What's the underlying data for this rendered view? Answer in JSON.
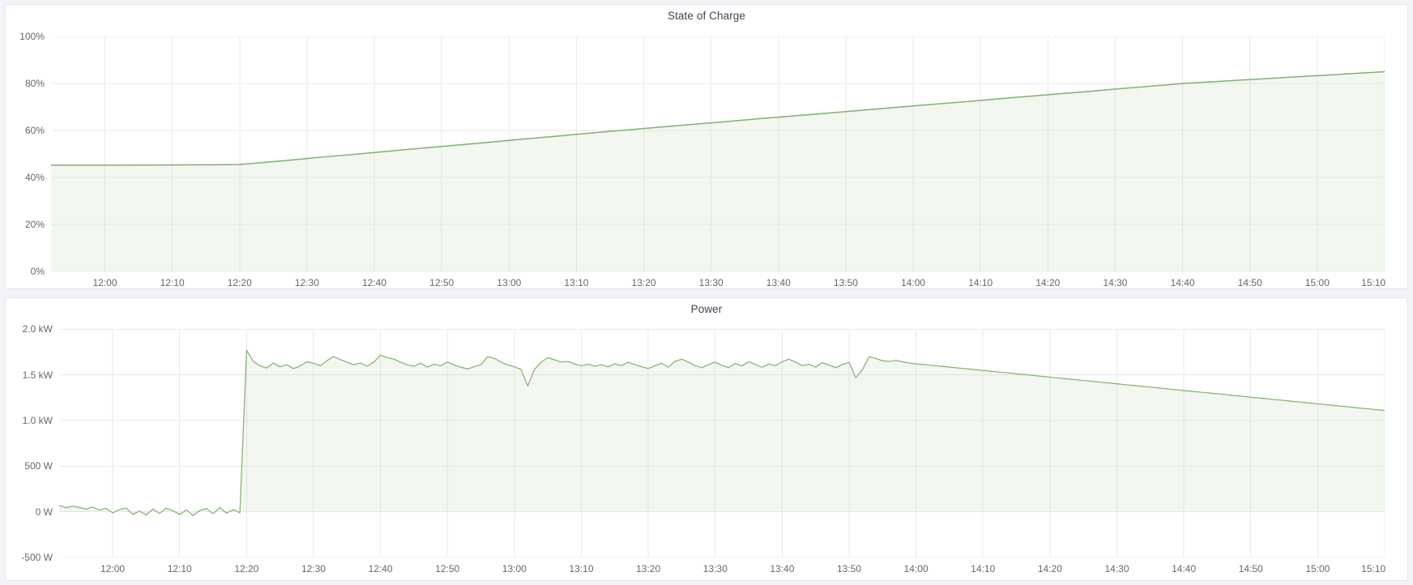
{
  "page": {
    "background": "#f2f4f7",
    "panel_background": "#ffffff",
    "panel_border": "#e2e5e9",
    "grid_color": "#e9eaec",
    "tick_text_color": "#63676f",
    "title_color": "#3f4450"
  },
  "chart_data": [
    {
      "type": "area",
      "title": "State of Charge",
      "ylabel": "",
      "xlabel": "",
      "legend": "none",
      "grid": true,
      "line_color": "#7eb26d",
      "fill_color": "rgba(126,178,109,0.1)",
      "y_range": [
        0,
        100
      ],
      "fill_baseline": 0,
      "x_range_minutes": [
        0,
        198
      ],
      "x_ticks": [
        {
          "t": 8,
          "label": "12:00"
        },
        {
          "t": 18,
          "label": "12:10"
        },
        {
          "t": 28,
          "label": "12:20"
        },
        {
          "t": 38,
          "label": "12:30"
        },
        {
          "t": 48,
          "label": "12:40"
        },
        {
          "t": 58,
          "label": "12:50"
        },
        {
          "t": 68,
          "label": "13:00"
        },
        {
          "t": 78,
          "label": "13:10"
        },
        {
          "t": 88,
          "label": "13:20"
        },
        {
          "t": 98,
          "label": "13:30"
        },
        {
          "t": 108,
          "label": "13:40"
        },
        {
          "t": 118,
          "label": "13:50"
        },
        {
          "t": 128,
          "label": "14:00"
        },
        {
          "t": 138,
          "label": "14:10"
        },
        {
          "t": 148,
          "label": "14:20"
        },
        {
          "t": 158,
          "label": "14:30"
        },
        {
          "t": 168,
          "label": "14:40"
        },
        {
          "t": 178,
          "label": "14:50"
        },
        {
          "t": 188,
          "label": "15:00"
        },
        {
          "t": 198,
          "label": "15:10"
        }
      ],
      "y_ticks": [
        {
          "v": 0,
          "label": "0%"
        },
        {
          "v": 20,
          "label": "20%"
        },
        {
          "v": 40,
          "label": "40%"
        },
        {
          "v": 60,
          "label": "60%"
        },
        {
          "v": 80,
          "label": "80%"
        },
        {
          "v": 100,
          "label": "100%"
        }
      ],
      "points": [
        [
          0,
          45.2
        ],
        [
          8,
          45.2
        ],
        [
          16,
          45.3
        ],
        [
          24,
          45.4
        ],
        [
          28,
          45.5
        ],
        [
          34,
          47.0
        ],
        [
          40,
          48.6
        ],
        [
          46,
          50.1
        ],
        [
          52,
          51.7
        ],
        [
          58,
          53.2
        ],
        [
          64,
          54.7
        ],
        [
          70,
          56.3
        ],
        [
          76,
          57.8
        ],
        [
          82,
          59.4
        ],
        [
          88,
          60.8
        ],
        [
          94,
          62.3
        ],
        [
          100,
          63.7
        ],
        [
          106,
          65.2
        ],
        [
          112,
          66.6
        ],
        [
          118,
          68.0
        ],
        [
          124,
          69.5
        ],
        [
          130,
          70.9
        ],
        [
          136,
          72.3
        ],
        [
          142,
          73.8
        ],
        [
          148,
          75.2
        ],
        [
          154,
          76.6
        ],
        [
          160,
          78.1
        ],
        [
          166,
          79.5
        ],
        [
          168,
          80.0
        ],
        [
          174,
          81.0
        ],
        [
          180,
          82.0
        ],
        [
          186,
          83.0
        ],
        [
          192,
          84.0
        ],
        [
          198,
          85.0
        ]
      ]
    },
    {
      "type": "area",
      "title": "Power",
      "ylabel": "",
      "xlabel": "",
      "legend": "none",
      "grid": true,
      "line_color": "#7eb26d",
      "fill_color": "rgba(126,178,109,0.1)",
      "y_range": [
        -500,
        2110
      ],
      "fill_baseline": 0,
      "x_range_minutes": [
        0,
        198
      ],
      "x_ticks": [
        {
          "t": 8,
          "label": "12:00"
        },
        {
          "t": 18,
          "label": "12:10"
        },
        {
          "t": 28,
          "label": "12:20"
        },
        {
          "t": 38,
          "label": "12:30"
        },
        {
          "t": 48,
          "label": "12:40"
        },
        {
          "t": 58,
          "label": "12:50"
        },
        {
          "t": 68,
          "label": "13:00"
        },
        {
          "t": 78,
          "label": "13:10"
        },
        {
          "t": 88,
          "label": "13:20"
        },
        {
          "t": 98,
          "label": "13:30"
        },
        {
          "t": 108,
          "label": "13:40"
        },
        {
          "t": 118,
          "label": "13:50"
        },
        {
          "t": 128,
          "label": "14:00"
        },
        {
          "t": 138,
          "label": "14:10"
        },
        {
          "t": 148,
          "label": "14:20"
        },
        {
          "t": 158,
          "label": "14:30"
        },
        {
          "t": 168,
          "label": "14:40"
        },
        {
          "t": 178,
          "label": "14:50"
        },
        {
          "t": 188,
          "label": "15:00"
        },
        {
          "t": 198,
          "label": "15:10"
        }
      ],
      "y_ticks": [
        {
          "v": -500,
          "label": "-500 W"
        },
        {
          "v": 0,
          "label": "0 W"
        },
        {
          "v": 500,
          "label": "500 W"
        },
        {
          "v": 1000,
          "label": "1.0 kW"
        },
        {
          "v": 1500,
          "label": "1.5 kW"
        },
        {
          "v": 2000,
          "label": "2.0 kW"
        }
      ],
      "values_unit": "W",
      "values_step_minutes": 1,
      "values": [
        70,
        45,
        62,
        48,
        30,
        52,
        20,
        38,
        -12,
        25,
        42,
        -28,
        8,
        -35,
        30,
        -18,
        40,
        12,
        -30,
        22,
        -42,
        15,
        35,
        -20,
        48,
        -15,
        25,
        -10,
        1770,
        1648,
        1600,
        1576,
        1630,
        1589,
        1612,
        1570,
        1598,
        1644,
        1628,
        1600,
        1656,
        1700,
        1668,
        1640,
        1612,
        1630,
        1595,
        1640,
        1716,
        1690,
        1672,
        1640,
        1610,
        1595,
        1628,
        1585,
        1618,
        1600,
        1642,
        1608,
        1585,
        1565,
        1590,
        1612,
        1700,
        1682,
        1640,
        1610,
        1590,
        1560,
        1380,
        1560,
        1640,
        1690,
        1665,
        1640,
        1648,
        1620,
        1600,
        1618,
        1595,
        1612,
        1588,
        1622,
        1600,
        1640,
        1612,
        1590,
        1570,
        1600,
        1628,
        1586,
        1650,
        1672,
        1640,
        1600,
        1580,
        1612,
        1640,
        1605,
        1580,
        1625,
        1598,
        1645,
        1615,
        1584,
        1620,
        1600,
        1646,
        1672,
        1640,
        1600,
        1618,
        1585,
        1635,
        1608,
        1580,
        1612,
        1640,
        1470,
        1560,
        1700,
        1680,
        1655,
        1648,
        1660,
        1644,
        1630,
        1622,
        1615,
        1607,
        1600,
        1593,
        1586,
        1578,
        1571,
        1564,
        1556,
        1549,
        1542,
        1534,
        1527,
        1520,
        1512,
        1505,
        1498,
        1490,
        1483,
        1476,
        1468,
        1461,
        1454,
        1446,
        1439,
        1432,
        1425,
        1417,
        1410,
        1403,
        1395,
        1388,
        1381,
        1373,
        1366,
        1359,
        1351,
        1344,
        1337,
        1329,
        1322,
        1315,
        1307,
        1300,
        1293,
        1286,
        1278,
        1271,
        1264,
        1256,
        1249,
        1242,
        1234,
        1227,
        1220,
        1212,
        1205,
        1198,
        1190,
        1183,
        1176,
        1169,
        1161,
        1154,
        1147,
        1139,
        1132,
        1125,
        1117,
        1110
      ]
    }
  ]
}
